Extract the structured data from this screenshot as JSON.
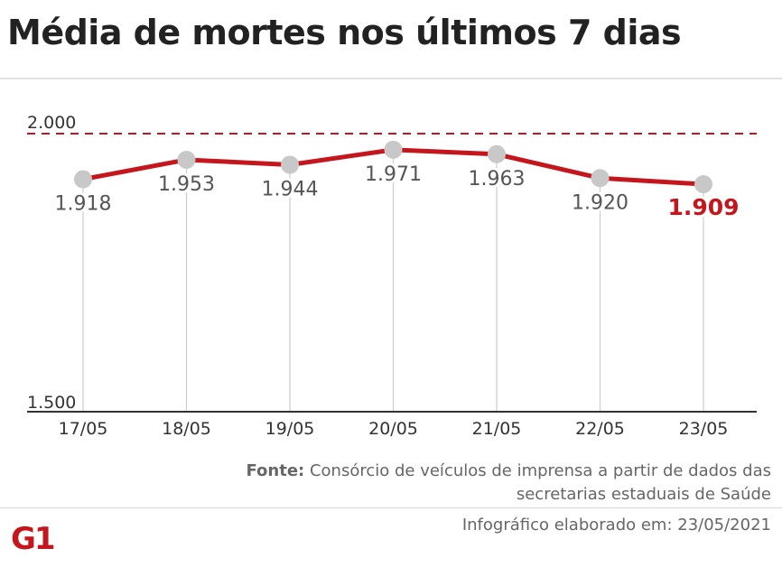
{
  "header": {
    "title": "Média de mortes nos últimos 7 dias"
  },
  "chart_data": {
    "type": "line",
    "title": "Média de mortes nos últimos 7 dias",
    "categories": [
      "17/05",
      "18/05",
      "19/05",
      "20/05",
      "21/05",
      "22/05",
      "23/05"
    ],
    "values": [
      1918,
      1953,
      1944,
      1971,
      1963,
      1920,
      1909
    ],
    "value_labels": [
      "1.918",
      "1.953",
      "1.944",
      "1.971",
      "1.963",
      "1.920",
      "1.909"
    ],
    "label_position": [
      "below",
      "below",
      "below",
      "below",
      "below",
      "below",
      "below"
    ],
    "ylim": [
      1500,
      2000
    ],
    "ytick_labels": [
      "2.000",
      "1.500"
    ],
    "reference_line": {
      "value": 2000,
      "style": "dashed"
    },
    "highlight_last": true,
    "grid": "vertical",
    "legend": "none",
    "colors": {
      "line": "#c4161c",
      "marker": "#c8c8c8",
      "highlight": "#c4161c",
      "grid": "#cccccc",
      "axis": "#333333"
    }
  },
  "source": {
    "label": "Fonte:",
    "text": " Consórcio de veículos de imprensa a partir de dados das secretarias estaduais de Saúde"
  },
  "footer": {
    "logo_text": "G1",
    "credit": "Infográfico elaborado em: 23/05/2021"
  }
}
